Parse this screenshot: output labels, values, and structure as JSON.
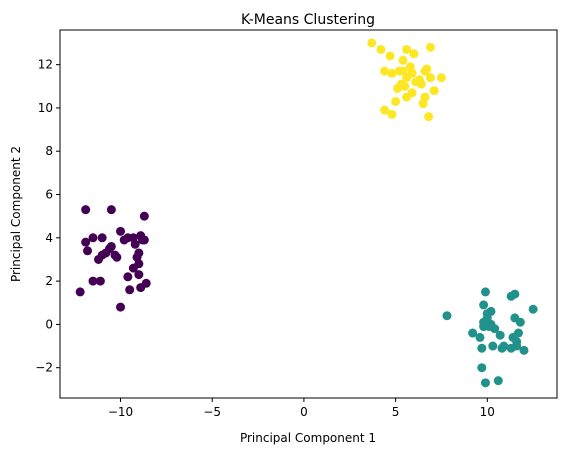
{
  "chart_data": {
    "type": "scatter",
    "title": "K-Means Clustering",
    "xlabel": "Principal Component 1",
    "ylabel": "Principal Component 2",
    "xlim": [
      -13.3,
      13.8
    ],
    "ylim": [
      -3.4,
      13.6
    ],
    "xticks": [
      -10,
      -5,
      0,
      5,
      10
    ],
    "yticks": [
      -2,
      0,
      2,
      4,
      6,
      8,
      10,
      12
    ],
    "grid": false,
    "legend": false,
    "series": [
      {
        "color": "#440154",
        "points": [
          [
            -12.2,
            1.5
          ],
          [
            -11.9,
            5.3
          ],
          [
            -10.5,
            5.3
          ],
          [
            -8.7,
            5.0
          ],
          [
            -11.9,
            3.8
          ],
          [
            -11.5,
            4.0
          ],
          [
            -11.0,
            4.0
          ],
          [
            -11.8,
            3.4
          ],
          [
            -11.2,
            3.0
          ],
          [
            -11.0,
            3.2
          ],
          [
            -10.8,
            3.3
          ],
          [
            -10.6,
            3.5
          ],
          [
            -10.5,
            3.6
          ],
          [
            -10.3,
            3.2
          ],
          [
            -10.2,
            3.1
          ],
          [
            -10.0,
            4.3
          ],
          [
            -9.6,
            2.2
          ],
          [
            -9.3,
            2.6
          ],
          [
            -9.0,
            2.8
          ],
          [
            -9.6,
            4.0
          ],
          [
            -9.2,
            3.7
          ],
          [
            -8.9,
            4.1
          ],
          [
            -8.7,
            3.9
          ],
          [
            -9.0,
            3.3
          ],
          [
            -8.8,
            3.9
          ],
          [
            -9.0,
            2.3
          ],
          [
            -9.3,
            4.0
          ],
          [
            -11.5,
            2.0
          ],
          [
            -11.1,
            2.0
          ],
          [
            -10.0,
            0.8
          ],
          [
            -9.5,
            1.6
          ],
          [
            -8.9,
            1.7
          ],
          [
            -8.6,
            1.9
          ],
          [
            -9.8,
            3.9
          ],
          [
            -9.1,
            3.1
          ]
        ]
      },
      {
        "color": "#21918c",
        "points": [
          [
            7.8,
            0.4
          ],
          [
            9.2,
            -0.4
          ],
          [
            9.6,
            -0.6
          ],
          [
            9.7,
            -1.1
          ],
          [
            9.7,
            -2.0
          ],
          [
            9.9,
            -2.7
          ],
          [
            10.6,
            -2.6
          ],
          [
            9.9,
            1.5
          ],
          [
            9.8,
            0.9
          ],
          [
            10.0,
            0.3
          ],
          [
            10.2,
            0.6
          ],
          [
            9.8,
            0.1
          ],
          [
            10.1,
            -0.1
          ],
          [
            10.4,
            -0.2
          ],
          [
            10.7,
            -0.5
          ],
          [
            10.9,
            -1.0
          ],
          [
            11.3,
            -1.1
          ],
          [
            11.6,
            -1.0
          ],
          [
            12.0,
            -1.2
          ],
          [
            11.4,
            -0.6
          ],
          [
            11.7,
            -0.4
          ],
          [
            11.5,
            0.3
          ],
          [
            11.8,
            0.1
          ],
          [
            11.3,
            1.3
          ],
          [
            11.5,
            1.4
          ],
          [
            12.5,
            0.7
          ],
          [
            10.3,
            -1.0
          ],
          [
            10.0,
            0.5
          ],
          [
            10.8,
            -1.1
          ],
          [
            11.6,
            -0.8
          ],
          [
            9.8,
            -0.1
          ],
          [
            10.2,
            0.0
          ]
        ]
      },
      {
        "color": "#fde725",
        "points": [
          [
            3.7,
            13.0
          ],
          [
            4.2,
            12.7
          ],
          [
            4.7,
            12.4
          ],
          [
            5.6,
            12.7
          ],
          [
            6.0,
            12.5
          ],
          [
            6.9,
            12.8
          ],
          [
            5.4,
            12.2
          ],
          [
            5.4,
            11.7
          ],
          [
            4.4,
            11.7
          ],
          [
            4.8,
            11.6
          ],
          [
            5.2,
            11.7
          ],
          [
            5.6,
            11.4
          ],
          [
            5.9,
            11.6
          ],
          [
            6.3,
            11.3
          ],
          [
            6.6,
            11.7
          ],
          [
            6.9,
            11.4
          ],
          [
            7.5,
            11.4
          ],
          [
            5.3,
            11.1
          ],
          [
            5.5,
            11.0
          ],
          [
            5.9,
            10.7
          ],
          [
            6.4,
            11.1
          ],
          [
            7.1,
            10.8
          ],
          [
            5.0,
            10.3
          ],
          [
            5.6,
            10.5
          ],
          [
            6.6,
            10.5
          ],
          [
            4.4,
            9.9
          ],
          [
            4.8,
            9.7
          ],
          [
            6.5,
            10.2
          ],
          [
            6.8,
            9.6
          ],
          [
            5.1,
            10.9
          ],
          [
            6.1,
            11.2
          ],
          [
            6.7,
            11.8
          ],
          [
            5.8,
            11.9
          ]
        ]
      }
    ]
  }
}
